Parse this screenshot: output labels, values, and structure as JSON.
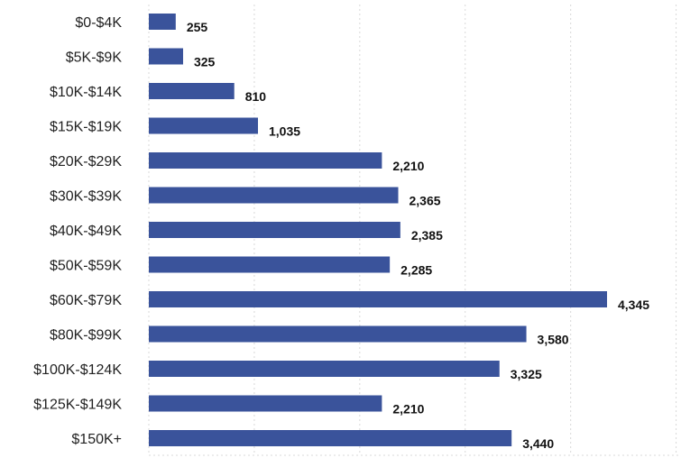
{
  "chart_data": {
    "type": "bar",
    "orientation": "horizontal",
    "categories": [
      "$0-$4K",
      "$5K-$9K",
      "$10K-$14K",
      "$15K-$19K",
      "$20K-$29K",
      "$30K-$39K",
      "$40K-$49K",
      "$50K-$59K",
      "$60K-$79K",
      "$80K-$99K",
      "$100K-$124K",
      "$125K-$149K",
      "$150K+"
    ],
    "values": [
      255,
      325,
      810,
      1035,
      2210,
      2365,
      2385,
      2285,
      4345,
      3580,
      3325,
      2210,
      3440
    ],
    "value_labels": [
      "255",
      "325",
      "810",
      "1,035",
      "2,210",
      "2,365",
      "2,385",
      "2,285",
      "4,345",
      "3,580",
      "3,325",
      "2,210",
      "3,440"
    ],
    "title": "",
    "xlabel": "",
    "ylabel": "",
    "xlim": [
      0,
      5000
    ],
    "grid": "vertical dotted",
    "bar_color": "#3a539b"
  }
}
